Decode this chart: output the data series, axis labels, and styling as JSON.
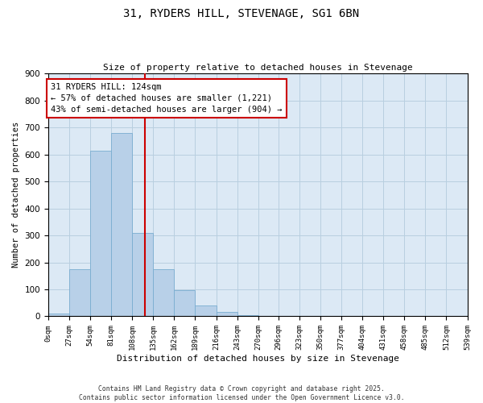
{
  "title": "31, RYDERS HILL, STEVENAGE, SG1 6BN",
  "subtitle": "Size of property relative to detached houses in Stevenage",
  "xlabel": "Distribution of detached houses by size in Stevenage",
  "ylabel": "Number of detached properties",
  "bar_edges": [
    0,
    27,
    54,
    81,
    108,
    135,
    162,
    189,
    216,
    243,
    270,
    296,
    323,
    350,
    377,
    404,
    431,
    458,
    485,
    512,
    539
  ],
  "bar_heights": [
    10,
    175,
    615,
    680,
    310,
    175,
    96,
    40,
    15,
    5,
    0,
    0,
    0,
    0,
    0,
    0,
    0,
    0,
    0,
    0
  ],
  "bar_color": "#b8d0e8",
  "bar_edge_color": "#7aadd0",
  "vline_x": 124,
  "vline_color": "#cc0000",
  "ylim": [
    0,
    900
  ],
  "yticks": [
    0,
    100,
    200,
    300,
    400,
    500,
    600,
    700,
    800,
    900
  ],
  "tick_labels": [
    "0sqm",
    "27sqm",
    "54sqm",
    "81sqm",
    "108sqm",
    "135sqm",
    "162sqm",
    "189sqm",
    "216sqm",
    "243sqm",
    "270sqm",
    "296sqm",
    "323sqm",
    "350sqm",
    "377sqm",
    "404sqm",
    "431sqm",
    "458sqm",
    "485sqm",
    "512sqm",
    "539sqm"
  ],
  "annotation_title": "31 RYDERS HILL: 124sqm",
  "annotation_line1": "← 57% of detached houses are smaller (1,221)",
  "annotation_line2": "43% of semi-detached houses are larger (904) →",
  "annotation_box_color": "#ffffff",
  "annotation_box_edge_color": "#cc0000",
  "background_color": "#ffffff",
  "axes_bg_color": "#dce9f5",
  "grid_color": "#b8cfe0",
  "footer_line1": "Contains HM Land Registry data © Crown copyright and database right 2025.",
  "footer_line2": "Contains public sector information licensed under the Open Government Licence v3.0."
}
